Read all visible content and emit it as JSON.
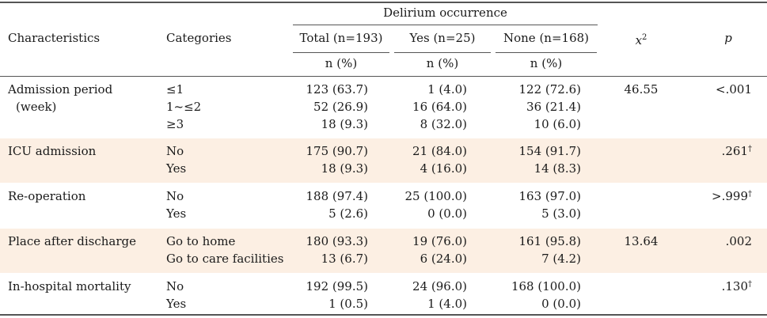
{
  "header": {
    "group": "Delirium occurrence",
    "characteristics": "Characteristics",
    "categories": "Categories",
    "total": "Total (n=193)",
    "yes": "Yes (n=25)",
    "none": "None (n=168)",
    "chi": "x",
    "chi_sup": "2",
    "p": "p",
    "n_total": "n (%)",
    "n_yes": "n (%)",
    "n_none": "n (%)"
  },
  "rows": [
    {
      "label_lines": [
        "Admission period",
        "(week)"
      ],
      "categories": [
        "≤1",
        "1~≤2",
        "≥3"
      ],
      "total": [
        "123 (63.7)",
        "52 (26.9)",
        "18 (9.3)"
      ],
      "yes": [
        "1 (4.0)",
        "16 (64.0)",
        "8 (32.0)"
      ],
      "none": [
        "122 (72.6)",
        "36 (21.4)",
        "10 (6.0)"
      ],
      "chi": "46.55",
      "p": "<.001",
      "dagger": ""
    },
    {
      "label_lines": [
        "ICU admission"
      ],
      "categories": [
        "No",
        "Yes"
      ],
      "total": [
        "175 (90.7)",
        "18 (9.3)"
      ],
      "yes": [
        "21 (84.0)",
        "4 (16.0)"
      ],
      "none": [
        "154 (91.7)",
        "14 (8.3)"
      ],
      "chi": "",
      "p": ".261",
      "dagger": "†"
    },
    {
      "label_lines": [
        "Re-operation"
      ],
      "categories": [
        "No",
        "Yes"
      ],
      "total": [
        "188 (97.4)",
        "5 (2.6)"
      ],
      "yes": [
        "25 (100.0)",
        "0 (0.0)"
      ],
      "none": [
        "163 (97.0)",
        "5 (3.0)"
      ],
      "chi": "",
      "p": ">.999",
      "dagger": "†"
    },
    {
      "label_lines": [
        "Place after discharge"
      ],
      "categories": [
        "Go to home",
        "Go to care facilities"
      ],
      "total": [
        "180 (93.3)",
        "13 (6.7)"
      ],
      "yes": [
        "19 (76.0)",
        "6 (24.0)"
      ],
      "none": [
        "161 (95.8)",
        "7 (4.2)"
      ],
      "chi": "13.64",
      "p": ".002",
      "dagger": ""
    },
    {
      "label_lines": [
        "In-hospital mortality"
      ],
      "categories": [
        "No",
        "Yes"
      ],
      "total": [
        "192 (99.5)",
        "1 (0.5)"
      ],
      "yes": [
        "24 (96.0)",
        "1 (4.0)"
      ],
      "none": [
        "168 (100.0)",
        "0 (0.0)"
      ],
      "chi": "",
      "p": ".130",
      "dagger": "†"
    }
  ]
}
